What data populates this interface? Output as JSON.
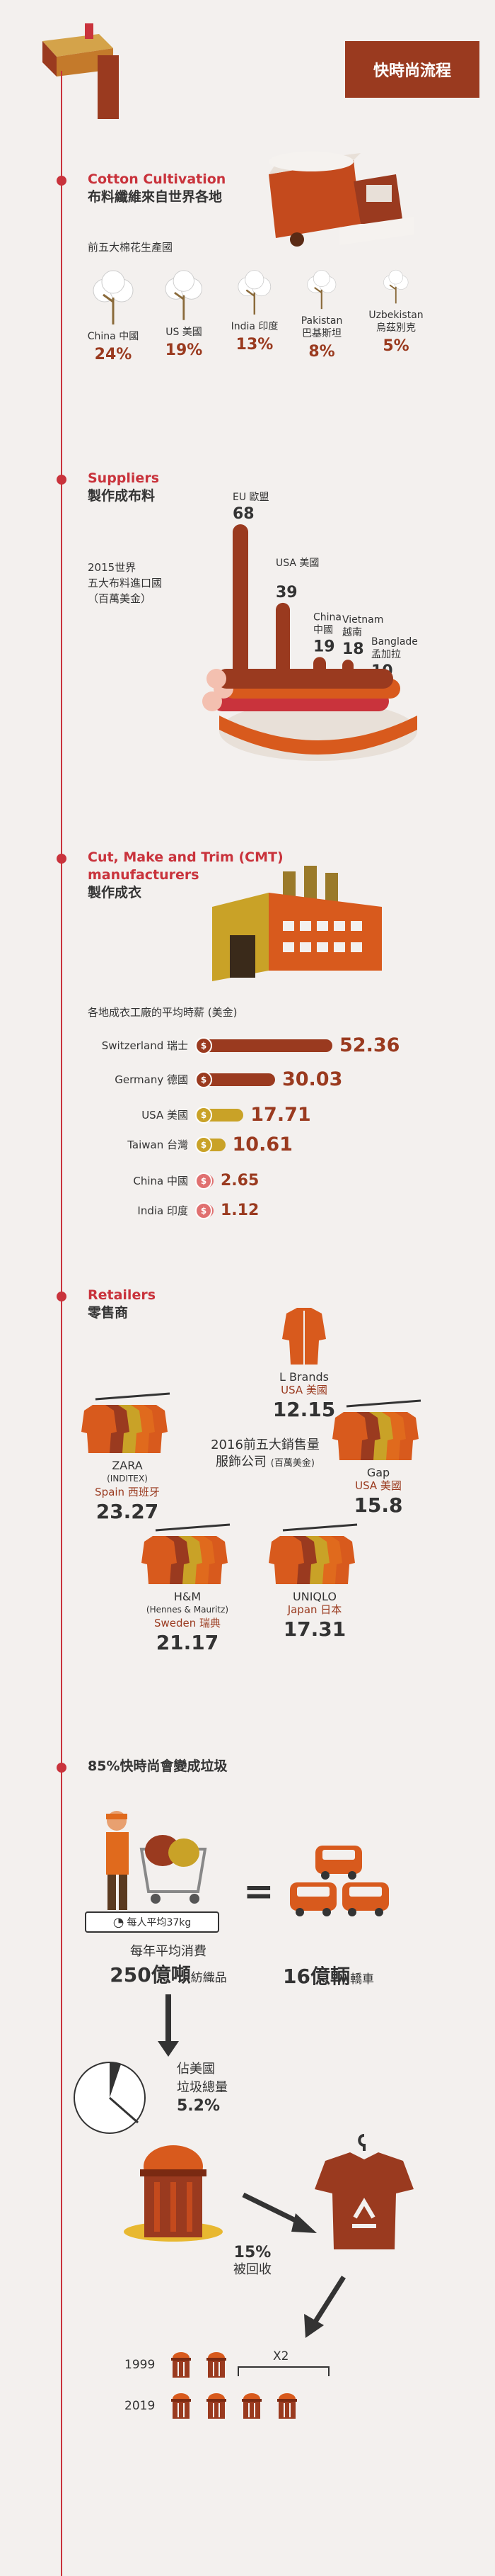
{
  "header": {
    "tag": "快時尚流程"
  },
  "cotton": {
    "title_en": "Cotton Cultivation",
    "title_zh": "布料纖維來自世界各地",
    "subtitle": "前五大棉花生產國",
    "countries": [
      {
        "label_en": "China",
        "label_zh": "中國",
        "pct": "24%"
      },
      {
        "label_en": "US",
        "label_zh": "美國",
        "pct": "19%"
      },
      {
        "label_en": "India",
        "label_zh": "印度",
        "pct": "13%"
      },
      {
        "label_en": "Pakistan",
        "label_zh": "巴基斯坦",
        "pct": "8%"
      },
      {
        "label_en": "Uzbekistan",
        "label_zh": "烏茲別克",
        "pct": "5%"
      }
    ]
  },
  "suppliers": {
    "title_en": "Suppliers",
    "title_zh": "製作成布料",
    "note_l1": "2015世界",
    "note_l2": "五大布料進口國",
    "note_l3": "（百萬美金）"
  },
  "cmt": {
    "title_en_l1": "Cut, Make and Trim (CMT)",
    "title_en_l2": "manufacturers",
    "title_zh": "製作成衣",
    "wage_title": "各地成衣工廠的平均時薪 (美金)"
  },
  "retailers": {
    "title_en": "Retailers",
    "title_zh": "零售商",
    "center_l1": "2016前五大銷售量",
    "center_l2": "服飾公司",
    "center_note": "(百萬美金)",
    "items": [
      {
        "name": "L Brands",
        "sub": "",
        "country": "USA 美國",
        "value": "12.15"
      },
      {
        "name": "ZARA",
        "sub": "(INDITEX)",
        "country": "Spain 西班牙",
        "value": "23.27"
      },
      {
        "name": "Gap",
        "sub": "",
        "country": "USA 美國",
        "value": "15.8"
      },
      {
        "name": "H&M",
        "sub": "(Hennes & Mauritz)",
        "country": "Sweden 瑞典",
        "value": "21.17"
      },
      {
        "name": "UNIQLO",
        "sub": "",
        "country": "Japan 日本",
        "value": "17.31"
      }
    ]
  },
  "waste": {
    "title": "85%快時尚會變成垃圾",
    "scale_text": "每人平均37kg",
    "consume_l1": "每年平均消費",
    "consume_big": "250億噸",
    "consume_unit": "紡織品",
    "cars_big": "16億輛",
    "cars_unit": "轎車",
    "landfill_l1": "佔美國",
    "landfill_l2": "垃圾總量",
    "landfill_pct": "5.2%",
    "recycled_pct": "15%",
    "recycled_label": "被回收",
    "year1": "1999",
    "year2": "2019",
    "multiplier": "X2"
  },
  "chart_data": [
    {
      "type": "bar",
      "title": "2015世界五大布料進口國（百萬美金）",
      "categories": [
        "EU 歐盟",
        "USA 美國",
        "China 中國",
        "Vietnam 越南",
        "Bangladesh 孟加拉"
      ],
      "values": [
        68,
        39,
        19,
        18,
        10
      ]
    },
    {
      "type": "bar",
      "title": "各地成衣工廠的平均時薪 (美金)",
      "categories": [
        "Switzerland 瑞士",
        "Germany 德國",
        "USA 美國",
        "Taiwan 台灣",
        "China 中國",
        "India 印度"
      ],
      "values": [
        52.36,
        30.03,
        17.71,
        10.61,
        2.65,
        1.12
      ]
    },
    {
      "type": "pie",
      "title": "佔美國垃圾總量",
      "categories": [
        "textile"
      ],
      "values": [
        5.2
      ]
    }
  ],
  "colors": {
    "red": "#c9333c",
    "brown": "#9a3a1f",
    "orange": "#e06a1d",
    "gold": "#c9a227",
    "pink": "#e07070"
  }
}
